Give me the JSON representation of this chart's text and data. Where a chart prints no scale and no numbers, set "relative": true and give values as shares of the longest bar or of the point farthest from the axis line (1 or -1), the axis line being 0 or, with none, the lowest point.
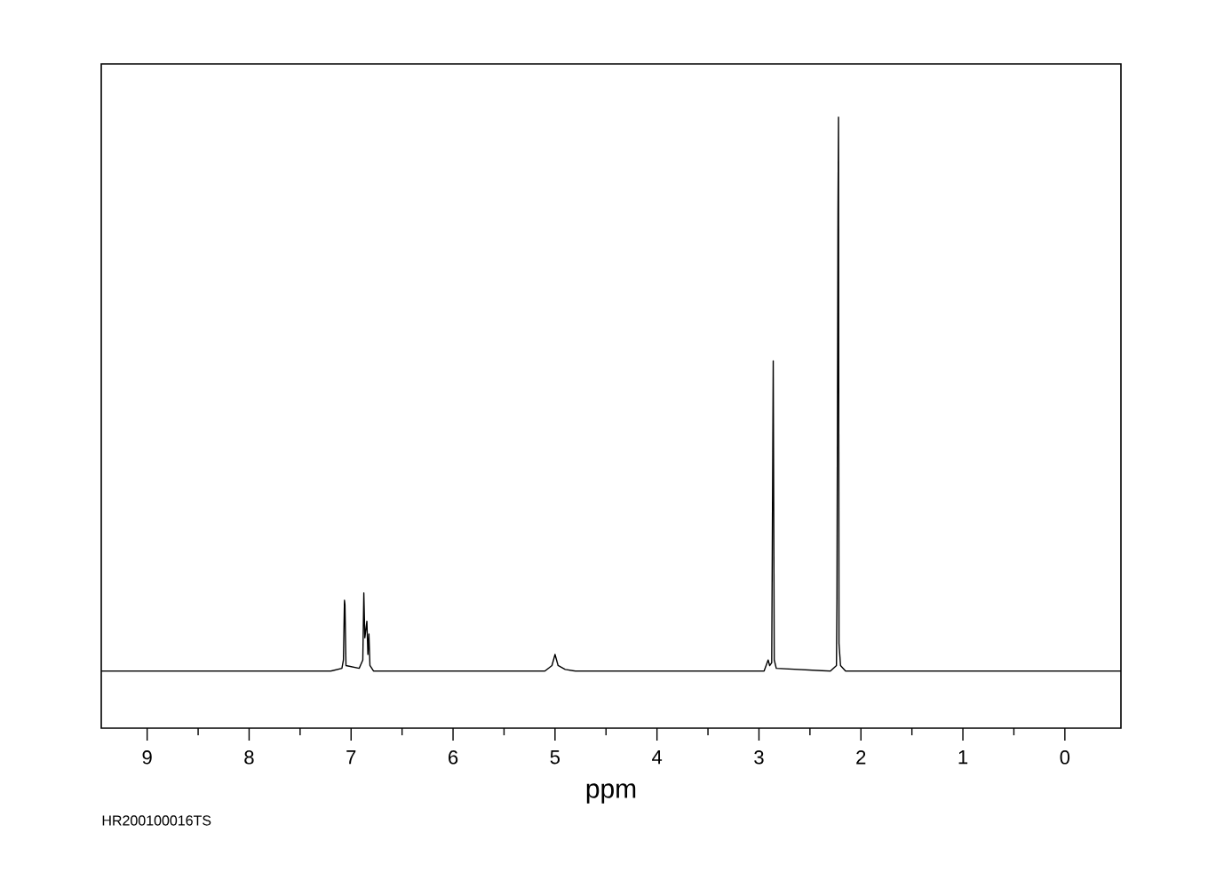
{
  "chart_data": {
    "type": "line",
    "relative": true,
    "xlabel": "ppm",
    "annotations": [
      "HR200100016TS"
    ],
    "xlim": [
      9.45,
      -0.55
    ],
    "xticks": [
      9,
      8,
      7,
      6,
      5,
      4,
      3,
      2,
      1,
      0
    ],
    "x": [
      9.45,
      7.2,
      7.09,
      7.075,
      7.065,
      7.06,
      7.05,
      6.92,
      6.885,
      6.875,
      6.865,
      6.845,
      6.835,
      6.825,
      6.815,
      6.78,
      5.1,
      5.03,
      5.0,
      4.97,
      4.9,
      4.8,
      2.95,
      2.91,
      2.895,
      2.875,
      2.86,
      2.85,
      2.83,
      2.3,
      2.24,
      2.235,
      2.225,
      2.22,
      2.215,
      2.2,
      2.15,
      -0.55
    ],
    "values": [
      0,
      0,
      0.005,
      0.02,
      0.128,
      0.12,
      0.01,
      0.005,
      0.02,
      0.141,
      0.06,
      0.09,
      0.03,
      0.067,
      0.01,
      0,
      0,
      0.01,
      0.03,
      0.01,
      0.003,
      0,
      0,
      0.02,
      0.01,
      0.015,
      0.56,
      0.02,
      0.005,
      0,
      0.01,
      0.13,
      0.83,
      1.0,
      0.05,
      0.01,
      0,
      0
    ],
    "color": "#000000"
  }
}
